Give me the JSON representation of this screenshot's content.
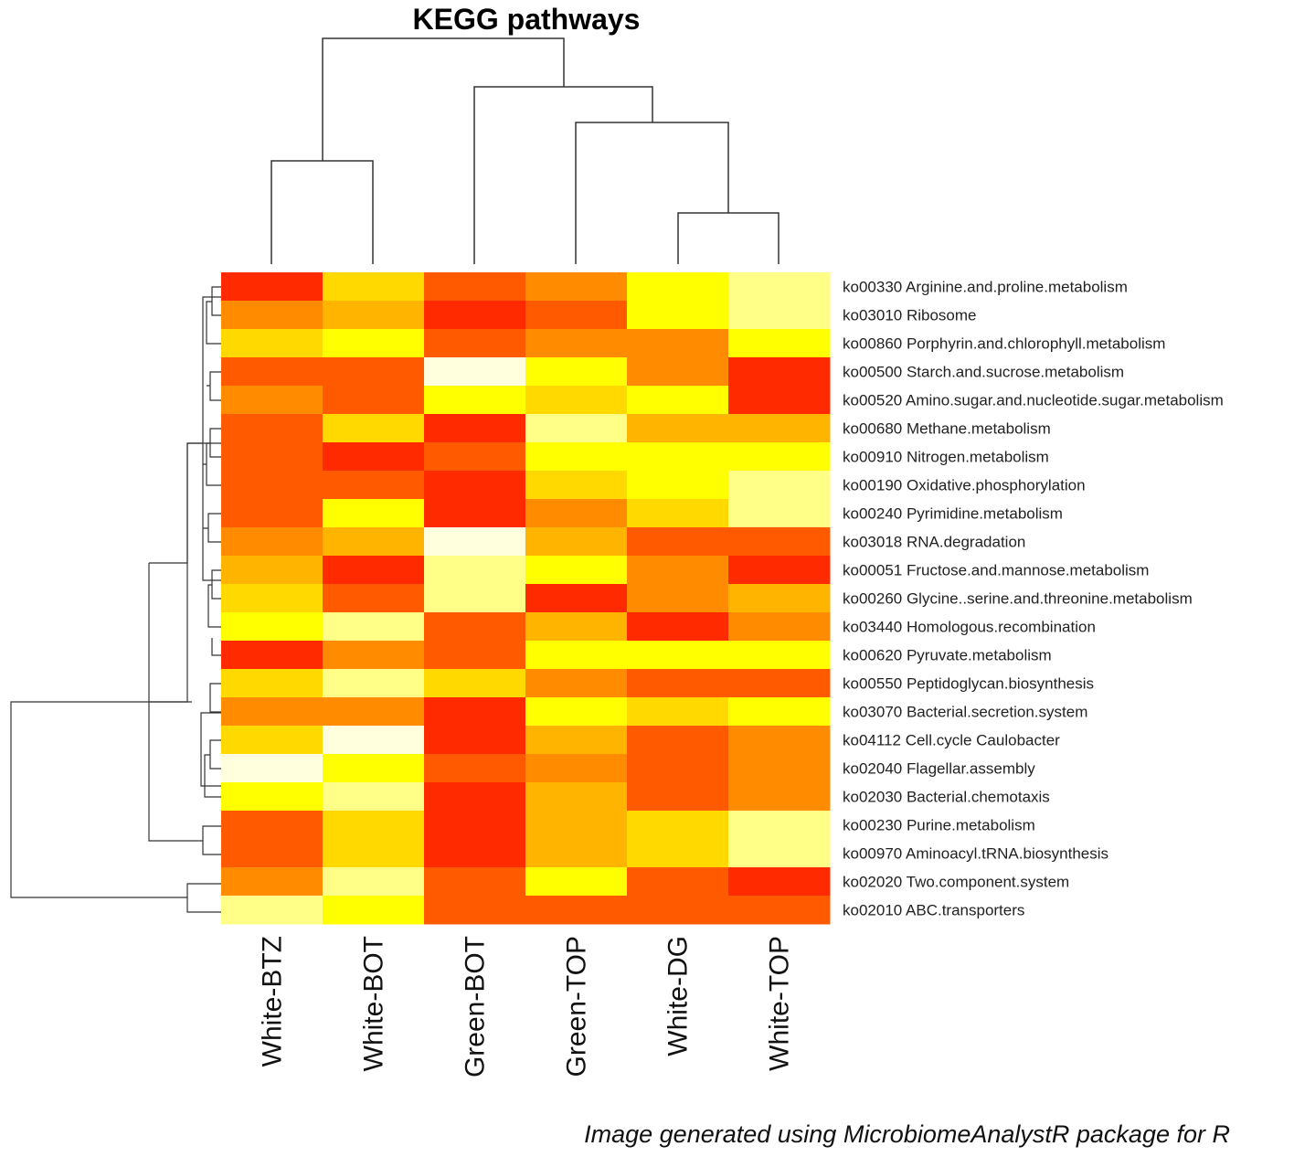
{
  "chart_data": {
    "type": "heatmap",
    "title": "KEGG pathways",
    "color_scale": [
      "#ff2a00",
      "#ff5a00",
      "#ff8c00",
      "#ffb400",
      "#ffd900",
      "#ffff00",
      "#ffff88",
      "#ffffdd"
    ],
    "color_scale_note": "index 0 = highest relative abundance (red), index 7 = lowest (pale yellow)",
    "columns": [
      "White-BTZ",
      "White-BOT",
      "Green-BOT",
      "Green-TOP",
      "White-DG",
      "White-TOP"
    ],
    "row_ids": [
      "ko00330",
      "ko03010",
      "ko00860",
      "ko00500",
      "ko00520",
      "ko00680",
      "ko00910",
      "ko00190",
      "ko00240",
      "ko03018",
      "ko00051",
      "ko00260",
      "ko03440",
      "ko00620",
      "ko00550",
      "ko03070",
      "ko04112",
      "ko02040",
      "ko02030",
      "ko00230",
      "ko00970",
      "ko02020",
      "ko02010"
    ],
    "row_names": [
      "Arginine.and.proline.metabolism",
      "Ribosome",
      "Porphyrin.and.chlorophyll.metabolism",
      "Starch.and.sucrose.metabolism",
      "Amino.sugar.and.nucleotide.sugar.metabolism",
      "Methane.metabolism",
      "Nitrogen.metabolism",
      "Oxidative.phosphorylation",
      "Pyrimidine.metabolism",
      "RNA.degradation",
      "Fructose.and.mannose.metabolism",
      "Glycine..serine.and.threonine.metabolism",
      "Homologous.recombination",
      "Pyruvate.metabolism",
      "Peptidoglycan.biosynthesis",
      "Bacterial.secretion.system",
      "Cell.cycle    Caulobacter",
      "Flagellar.assembly",
      "Bacterial.chemotaxis",
      "Purine.metabolism",
      "Aminoacyl.tRNA.biosynthesis",
      "Two.component.system",
      "ABC.transporters"
    ],
    "values": [
      [
        0,
        4,
        1,
        2,
        5,
        6
      ],
      [
        2,
        3,
        0,
        1,
        5,
        6
      ],
      [
        4,
        5,
        1,
        2,
        2,
        5
      ],
      [
        1,
        1,
        7,
        5,
        2,
        0
      ],
      [
        2,
        1,
        5,
        4,
        5,
        0
      ],
      [
        1,
        4,
        0,
        6,
        3,
        3
      ],
      [
        1,
        0,
        1,
        5,
        5,
        5
      ],
      [
        1,
        1,
        0,
        4,
        5,
        6
      ],
      [
        1,
        5,
        0,
        2,
        4,
        6
      ],
      [
        2,
        3,
        7,
        3,
        1,
        1
      ],
      [
        3,
        0,
        6,
        5,
        2,
        0
      ],
      [
        4,
        1,
        6,
        0,
        2,
        3
      ],
      [
        5,
        6,
        1,
        3,
        0,
        2
      ],
      [
        0,
        2,
        1,
        5,
        5,
        5
      ],
      [
        4,
        6,
        4,
        2,
        1,
        1
      ],
      [
        2,
        2,
        0,
        5,
        4,
        5
      ],
      [
        4,
        7,
        0,
        3,
        1,
        2
      ],
      [
        7,
        5,
        1,
        2,
        1,
        2
      ],
      [
        5,
        6,
        0,
        3,
        1,
        2
      ],
      [
        1,
        4,
        0,
        3,
        4,
        6
      ],
      [
        1,
        4,
        0,
        3,
        4,
        6
      ],
      [
        2,
        6,
        1,
        5,
        1,
        0
      ],
      [
        6,
        5,
        1,
        1,
        1,
        1
      ]
    ],
    "column_dendrogram": "((White-BTZ, White-BOT), (Green-BOT, (Green-TOP, (White-DG, White-TOP))))",
    "row_dendrogram": "(((ko00330..ko03070 group), (ko04112, ko02040, ko02030), (ko00230, ko00970)), (ko02020, ko02010))"
  },
  "caption": "Image generated using MicrobiomeAnalystR package for R"
}
